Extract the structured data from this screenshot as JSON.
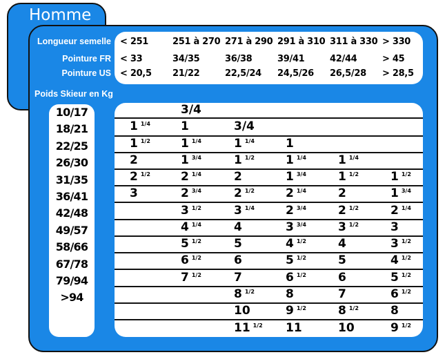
{
  "title": "Homme",
  "headers": {
    "row_labels": [
      "Longueur semelle",
      "Pointure FR",
      "Pointure US"
    ],
    "columns": [
      [
        "< 251",
        "< 33",
        "< 20,5"
      ],
      [
        "251 à 270",
        "34/35",
        "21/22"
      ],
      [
        "271 à 290",
        "36/38",
        "22,5/24"
      ],
      [
        "291 à 310",
        "39/41",
        "24,5/26"
      ],
      [
        "311 à 330",
        "42/44",
        "26,5/28"
      ],
      [
        "> 330",
        "> 45",
        "> 28,5"
      ]
    ]
  },
  "weight_label": "Poids Skieur en Kg",
  "weights": [
    "10/17",
    "18/21",
    "22/25",
    "26/30",
    "31/35",
    "36/41",
    "42/48",
    "49/57",
    "58/66",
    "67/78",
    "79/94",
    ">94"
  ],
  "grid": [
    [
      [
        "",
        ""
      ],
      [
        "3/4",
        ""
      ],
      [
        "",
        ""
      ],
      [
        "",
        ""
      ],
      [
        "",
        ""
      ],
      [
        "",
        ""
      ]
    ],
    [
      [
        "1",
        "1/4"
      ],
      [
        "1",
        ""
      ],
      [
        "3/4",
        ""
      ],
      [
        "",
        ""
      ],
      [
        "",
        ""
      ],
      [
        "",
        ""
      ]
    ],
    [
      [
        "1",
        "1/2"
      ],
      [
        "1",
        "1/4"
      ],
      [
        "1",
        "1/4"
      ],
      [
        "1",
        ""
      ],
      [
        "",
        ""
      ],
      [
        "",
        ""
      ]
    ],
    [
      [
        "2",
        ""
      ],
      [
        "1",
        "3/4"
      ],
      [
        "1",
        "1/2"
      ],
      [
        "1",
        "1/4"
      ],
      [
        "1",
        "1/4"
      ],
      [
        "",
        ""
      ]
    ],
    [
      [
        "2",
        "1/2"
      ],
      [
        "2",
        "1/4"
      ],
      [
        "2",
        ""
      ],
      [
        "1",
        "3/4"
      ],
      [
        "1",
        "1/2"
      ],
      [
        "1",
        "1/2"
      ]
    ],
    [
      [
        "3",
        ""
      ],
      [
        "2",
        "3/4"
      ],
      [
        "2",
        "1/2"
      ],
      [
        "2",
        "1/4"
      ],
      [
        "2",
        ""
      ],
      [
        "1",
        "3/4"
      ]
    ],
    [
      [
        "",
        ""
      ],
      [
        "3",
        "1/2"
      ],
      [
        "3",
        "1/4"
      ],
      [
        "2",
        "3/4"
      ],
      [
        "2",
        "1/2"
      ],
      [
        "2",
        "1/4"
      ]
    ],
    [
      [
        "",
        ""
      ],
      [
        "4",
        "1/4"
      ],
      [
        "4",
        ""
      ],
      [
        "3",
        "3/4"
      ],
      [
        "3",
        "1/2"
      ],
      [
        "3",
        ""
      ]
    ],
    [
      [
        "",
        ""
      ],
      [
        "5",
        "1/2"
      ],
      [
        "5",
        ""
      ],
      [
        "4",
        "1/2"
      ],
      [
        "4",
        ""
      ],
      [
        "3",
        "1/2"
      ]
    ],
    [
      [
        "",
        ""
      ],
      [
        "6",
        "1/2"
      ],
      [
        "6",
        ""
      ],
      [
        "5",
        "1/2"
      ],
      [
        "5",
        ""
      ],
      [
        "4",
        "1/2"
      ]
    ],
    [
      [
        "",
        ""
      ],
      [
        "7",
        "1/2"
      ],
      [
        "7",
        ""
      ],
      [
        "6",
        "1/2"
      ],
      [
        "6",
        ""
      ],
      [
        "5",
        "1/2"
      ]
    ],
    [
      [
        "",
        ""
      ],
      [
        "",
        ""
      ],
      [
        "8",
        "1/2"
      ],
      [
        "8",
        ""
      ],
      [
        "7",
        ""
      ],
      [
        "6",
        "1/2"
      ]
    ],
    [
      [
        "",
        ""
      ],
      [
        "",
        ""
      ],
      [
        "10",
        ""
      ],
      [
        "9",
        "1/2"
      ],
      [
        "8",
        "1/2"
      ],
      [
        "8",
        ""
      ]
    ],
    [
      [
        "",
        ""
      ],
      [
        "",
        ""
      ],
      [
        "11",
        "1/2"
      ],
      [
        "11",
        ""
      ],
      [
        "10",
        ""
      ],
      [
        "9",
        "1/2"
      ]
    ]
  ]
}
